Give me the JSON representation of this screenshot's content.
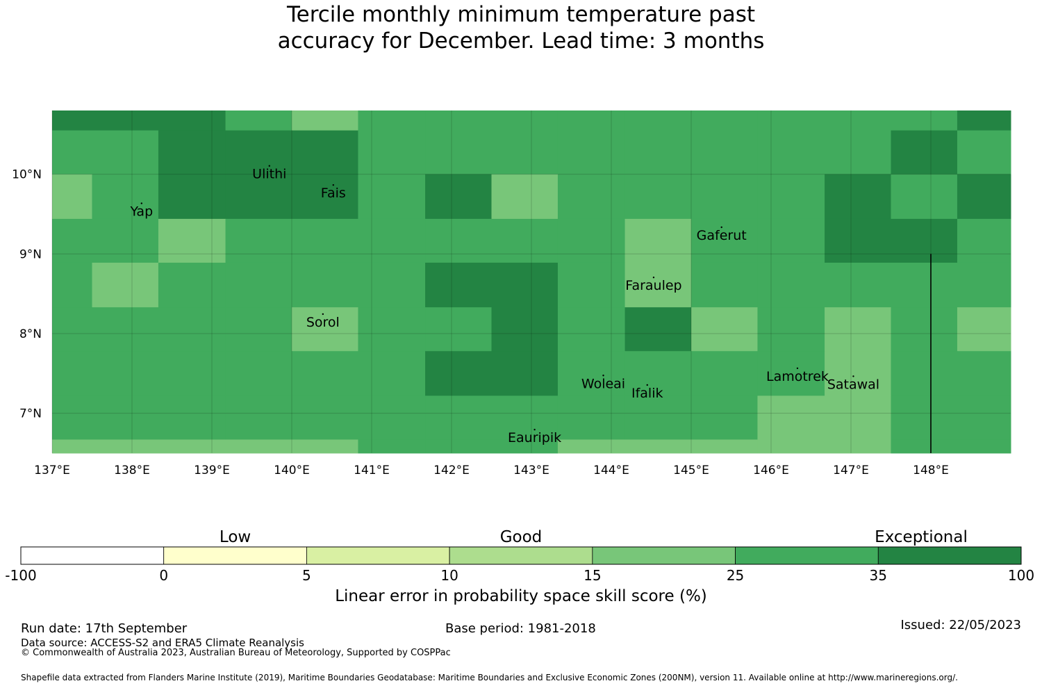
{
  "title": {
    "line1": "Tercile monthly minimum temperature past",
    "line2": "accuracy for December. Lead time: 3 months"
  },
  "map": {
    "lon_range": [
      137.0,
      149.0
    ],
    "lat_range": [
      6.5,
      10.8
    ],
    "lon_ticks": [
      {
        "value": 137,
        "label": "137°E"
      },
      {
        "value": 138,
        "label": "138°E"
      },
      {
        "value": 139,
        "label": "139°E"
      },
      {
        "value": 140,
        "label": "140°E"
      },
      {
        "value": 141,
        "label": "141°E"
      },
      {
        "value": 142,
        "label": "142°E"
      },
      {
        "value": 143,
        "label": "143°E"
      },
      {
        "value": 144,
        "label": "144°E"
      },
      {
        "value": 145,
        "label": "145°E"
      },
      {
        "value": 146,
        "label": "146°E"
      },
      {
        "value": 147,
        "label": "147°E"
      },
      {
        "value": 148,
        "label": "148°E"
      }
    ],
    "lat_ticks": [
      {
        "value": 10,
        "label": "10°N"
      },
      {
        "value": 9,
        "label": "9°N"
      },
      {
        "value": 8,
        "label": "8°N"
      },
      {
        "value": 7,
        "label": "7°N"
      }
    ],
    "grid_lon_edges": [
      137.0,
      137.5,
      138.33,
      139.17,
      140.0,
      140.83,
      141.67,
      142.5,
      143.33,
      144.17,
      145.0,
      145.83,
      146.67,
      147.5,
      148.33,
      149.0
    ],
    "grid_lat_edges": [
      10.8,
      10.55,
      10.0,
      9.44,
      8.89,
      8.33,
      7.78,
      7.22,
      6.67,
      6.5
    ],
    "skill_category_grid": [
      [
        6,
        6,
        6,
        5,
        4,
        5,
        5,
        5,
        5,
        5,
        5,
        5,
        5,
        5,
        6
      ],
      [
        5,
        5,
        6,
        6,
        6,
        5,
        5,
        5,
        5,
        5,
        5,
        5,
        5,
        6,
        5
      ],
      [
        4,
        5,
        6,
        6,
        6,
        5,
        6,
        4,
        5,
        5,
        5,
        5,
        6,
        5,
        6
      ],
      [
        5,
        5,
        4,
        5,
        5,
        5,
        5,
        5,
        5,
        4,
        5,
        5,
        6,
        6,
        5
      ],
      [
        5,
        4,
        5,
        5,
        5,
        5,
        6,
        6,
        5,
        4,
        5,
        5,
        5,
        5,
        5
      ],
      [
        5,
        5,
        5,
        5,
        4,
        5,
        5,
        6,
        5,
        6,
        4,
        5,
        4,
        5,
        4
      ],
      [
        5,
        5,
        5,
        5,
        5,
        5,
        6,
        6,
        5,
        5,
        5,
        5,
        4,
        5,
        5
      ],
      [
        5,
        5,
        5,
        5,
        5,
        5,
        5,
        5,
        5,
        5,
        5,
        4,
        4,
        5,
        5
      ],
      [
        4,
        4,
        4,
        4,
        4,
        5,
        5,
        5,
        4,
        4,
        4,
        4,
        4,
        5,
        5
      ]
    ],
    "boundary_line": {
      "lon": 148.0,
      "lat_from": 6.5,
      "lat_to": 9.0
    },
    "places": [
      {
        "name": "Ulithi",
        "lon": 139.72,
        "lat": 10.0
      },
      {
        "name": "Fais",
        "lon": 140.52,
        "lat": 9.76
      },
      {
        "name": "Yap",
        "lon": 138.12,
        "lat": 9.53
      },
      {
        "name": "Gaferut",
        "lon": 145.38,
        "lat": 9.23
      },
      {
        "name": "Faraulep",
        "lon": 144.53,
        "lat": 8.6
      },
      {
        "name": "Sorol",
        "lon": 140.39,
        "lat": 8.14
      },
      {
        "name": "Woleai",
        "lon": 143.9,
        "lat": 7.37
      },
      {
        "name": "Lamotrek",
        "lon": 146.33,
        "lat": 7.46
      },
      {
        "name": "Satawal",
        "lon": 147.03,
        "lat": 7.36
      },
      {
        "name": "Ifalik",
        "lon": 144.45,
        "lat": 7.25
      },
      {
        "name": "Eauripik",
        "lon": 143.04,
        "lat": 6.69
      }
    ]
  },
  "colorbar": {
    "categories": [
      {
        "label": "Low",
        "under_segment": 1.5
      },
      {
        "label": "Good",
        "under_segment": 3.5
      },
      {
        "label": "Exceptional",
        "under_segment": 6.3
      }
    ],
    "segments": [
      {
        "from": "-100",
        "to": "0",
        "color": "#ffffff"
      },
      {
        "from": "0",
        "to": "5",
        "color": "#ffffcc"
      },
      {
        "from": "5",
        "to": "10",
        "color": "#d9f0a3"
      },
      {
        "from": "10",
        "to": "15",
        "color": "#addd8e"
      },
      {
        "from": "15",
        "to": "25",
        "color": "#78c679"
      },
      {
        "from": "25",
        "to": "35",
        "color": "#41ab5d"
      },
      {
        "from": "35",
        "to": "100",
        "color": "#238443"
      }
    ],
    "tick_labels": [
      "-100",
      "0",
      "5",
      "10",
      "15",
      "25",
      "35",
      "100"
    ],
    "label": "Linear error in probability space skill score (%)"
  },
  "footer": {
    "run_date": "Run date: 17th September",
    "base_period": "Base period: 1981-2018",
    "issued": "Issued: 22/05/2023",
    "data_source": "Data source: ACCESS-S2 and ERA5 Climate Reanalysis",
    "copyright": "© Commonwealth of Australia 2023, Australian Bureau of Meteorology, Supported by COSPPac",
    "shapefile": "Shapefile data extracted from Flanders Marine Institute (2019), Maritime Boundaries Geodatabase: Maritime Boundaries and Exclusive Economic Zones (200NM), version 11. Available online at http://www.marineregions.org/."
  }
}
